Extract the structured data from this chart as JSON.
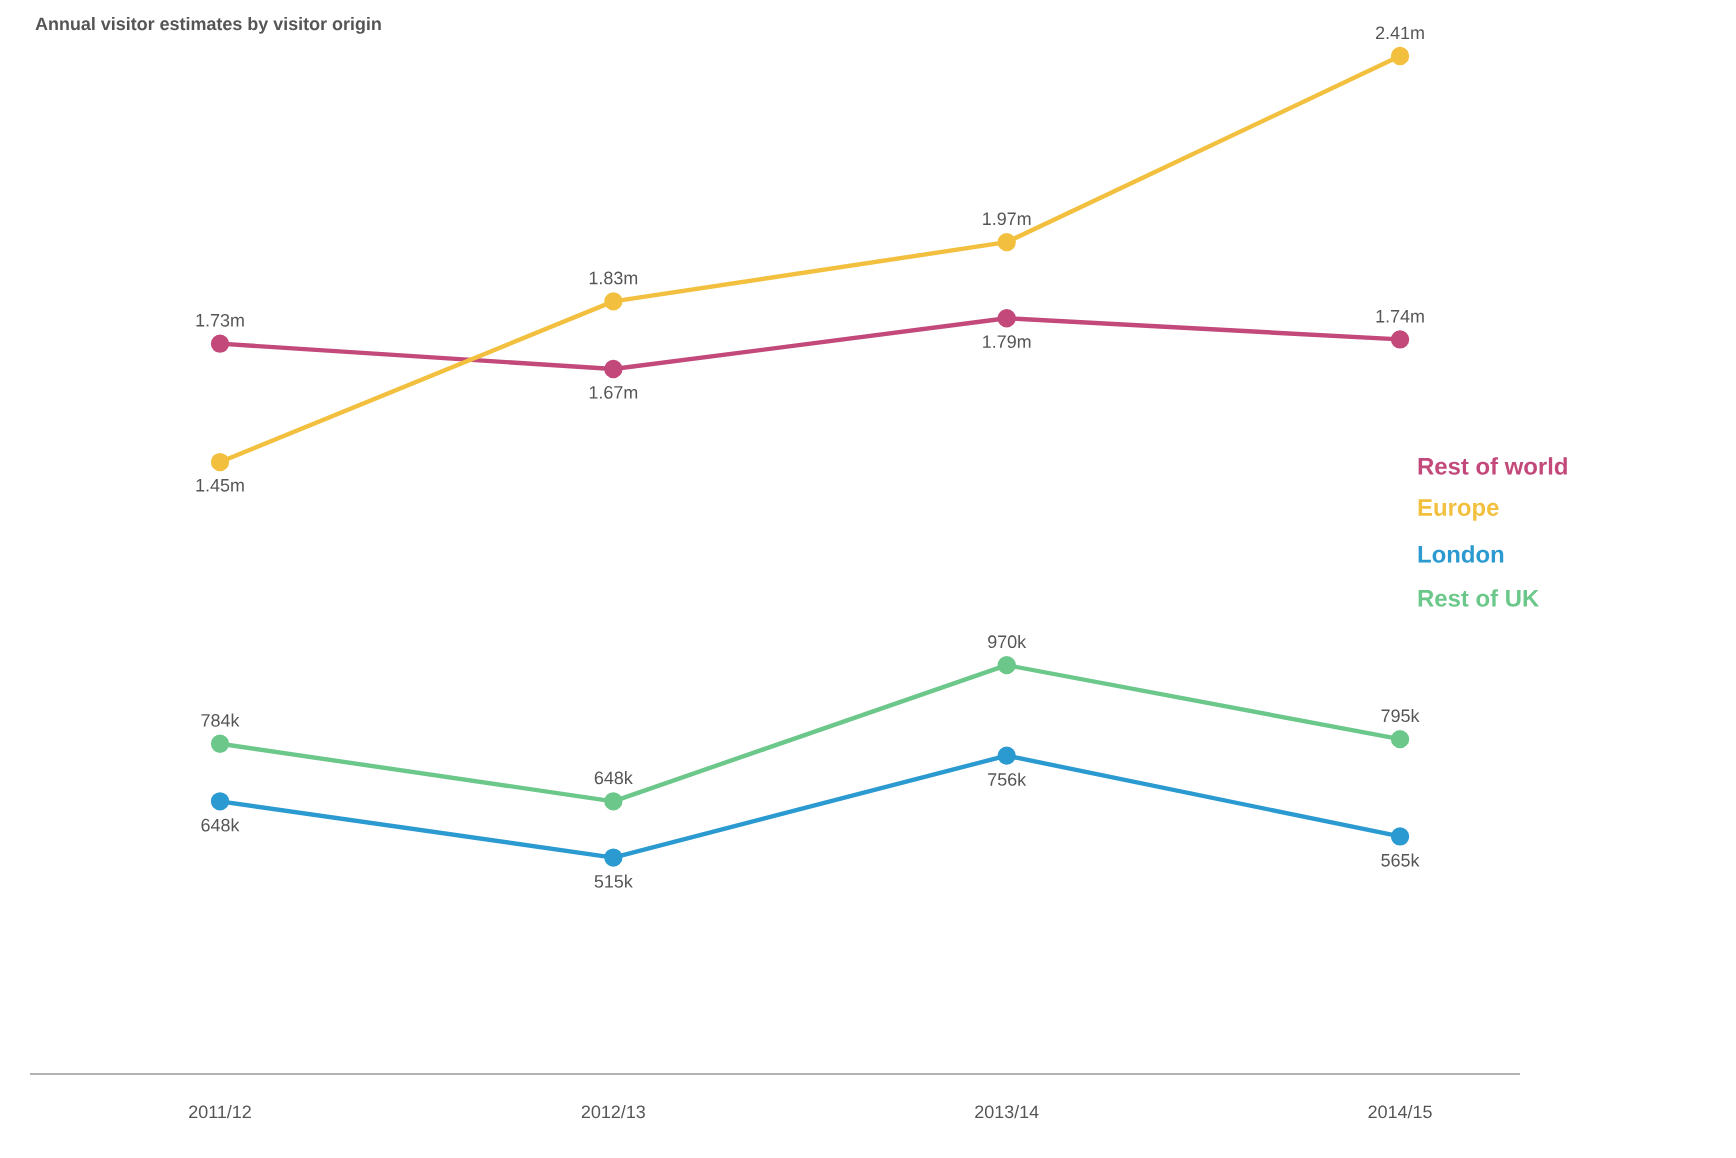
{
  "chart_data": {
    "type": "line",
    "title": "Annual visitor estimates by visitor origin",
    "categories": [
      "2011/12",
      "2012/13",
      "2013/14",
      "2014/15"
    ],
    "series": [
      {
        "name": "Rest of world",
        "color": "#c2497a",
        "values": [
          1730000,
          1670000,
          1790000,
          1740000
        ],
        "value_labels": [
          "1.73m",
          "1.67m",
          "1.79m",
          "1.74m"
        ]
      },
      {
        "name": "Europe",
        "color": "#f2c03e",
        "values": [
          1450000,
          1830000,
          1970000,
          2410000
        ],
        "value_labels": [
          "1.45m",
          "1.83m",
          "1.97m",
          "2.41m"
        ]
      },
      {
        "name": "London",
        "color": "#2b9ad0",
        "values": [
          648000,
          515000,
          756000,
          565000
        ],
        "value_labels": [
          "648k",
          "515k",
          "756k",
          "565k"
        ]
      },
      {
        "name": "Rest of UK",
        "color": "#6cc88a",
        "values": [
          784000,
          648000,
          970000,
          795000
        ],
        "value_labels": [
          "784k",
          "648k",
          "970k",
          "795k"
        ]
      }
    ],
    "grid": false,
    "legend": "right",
    "marker": "circle",
    "line_style": "solid"
  }
}
